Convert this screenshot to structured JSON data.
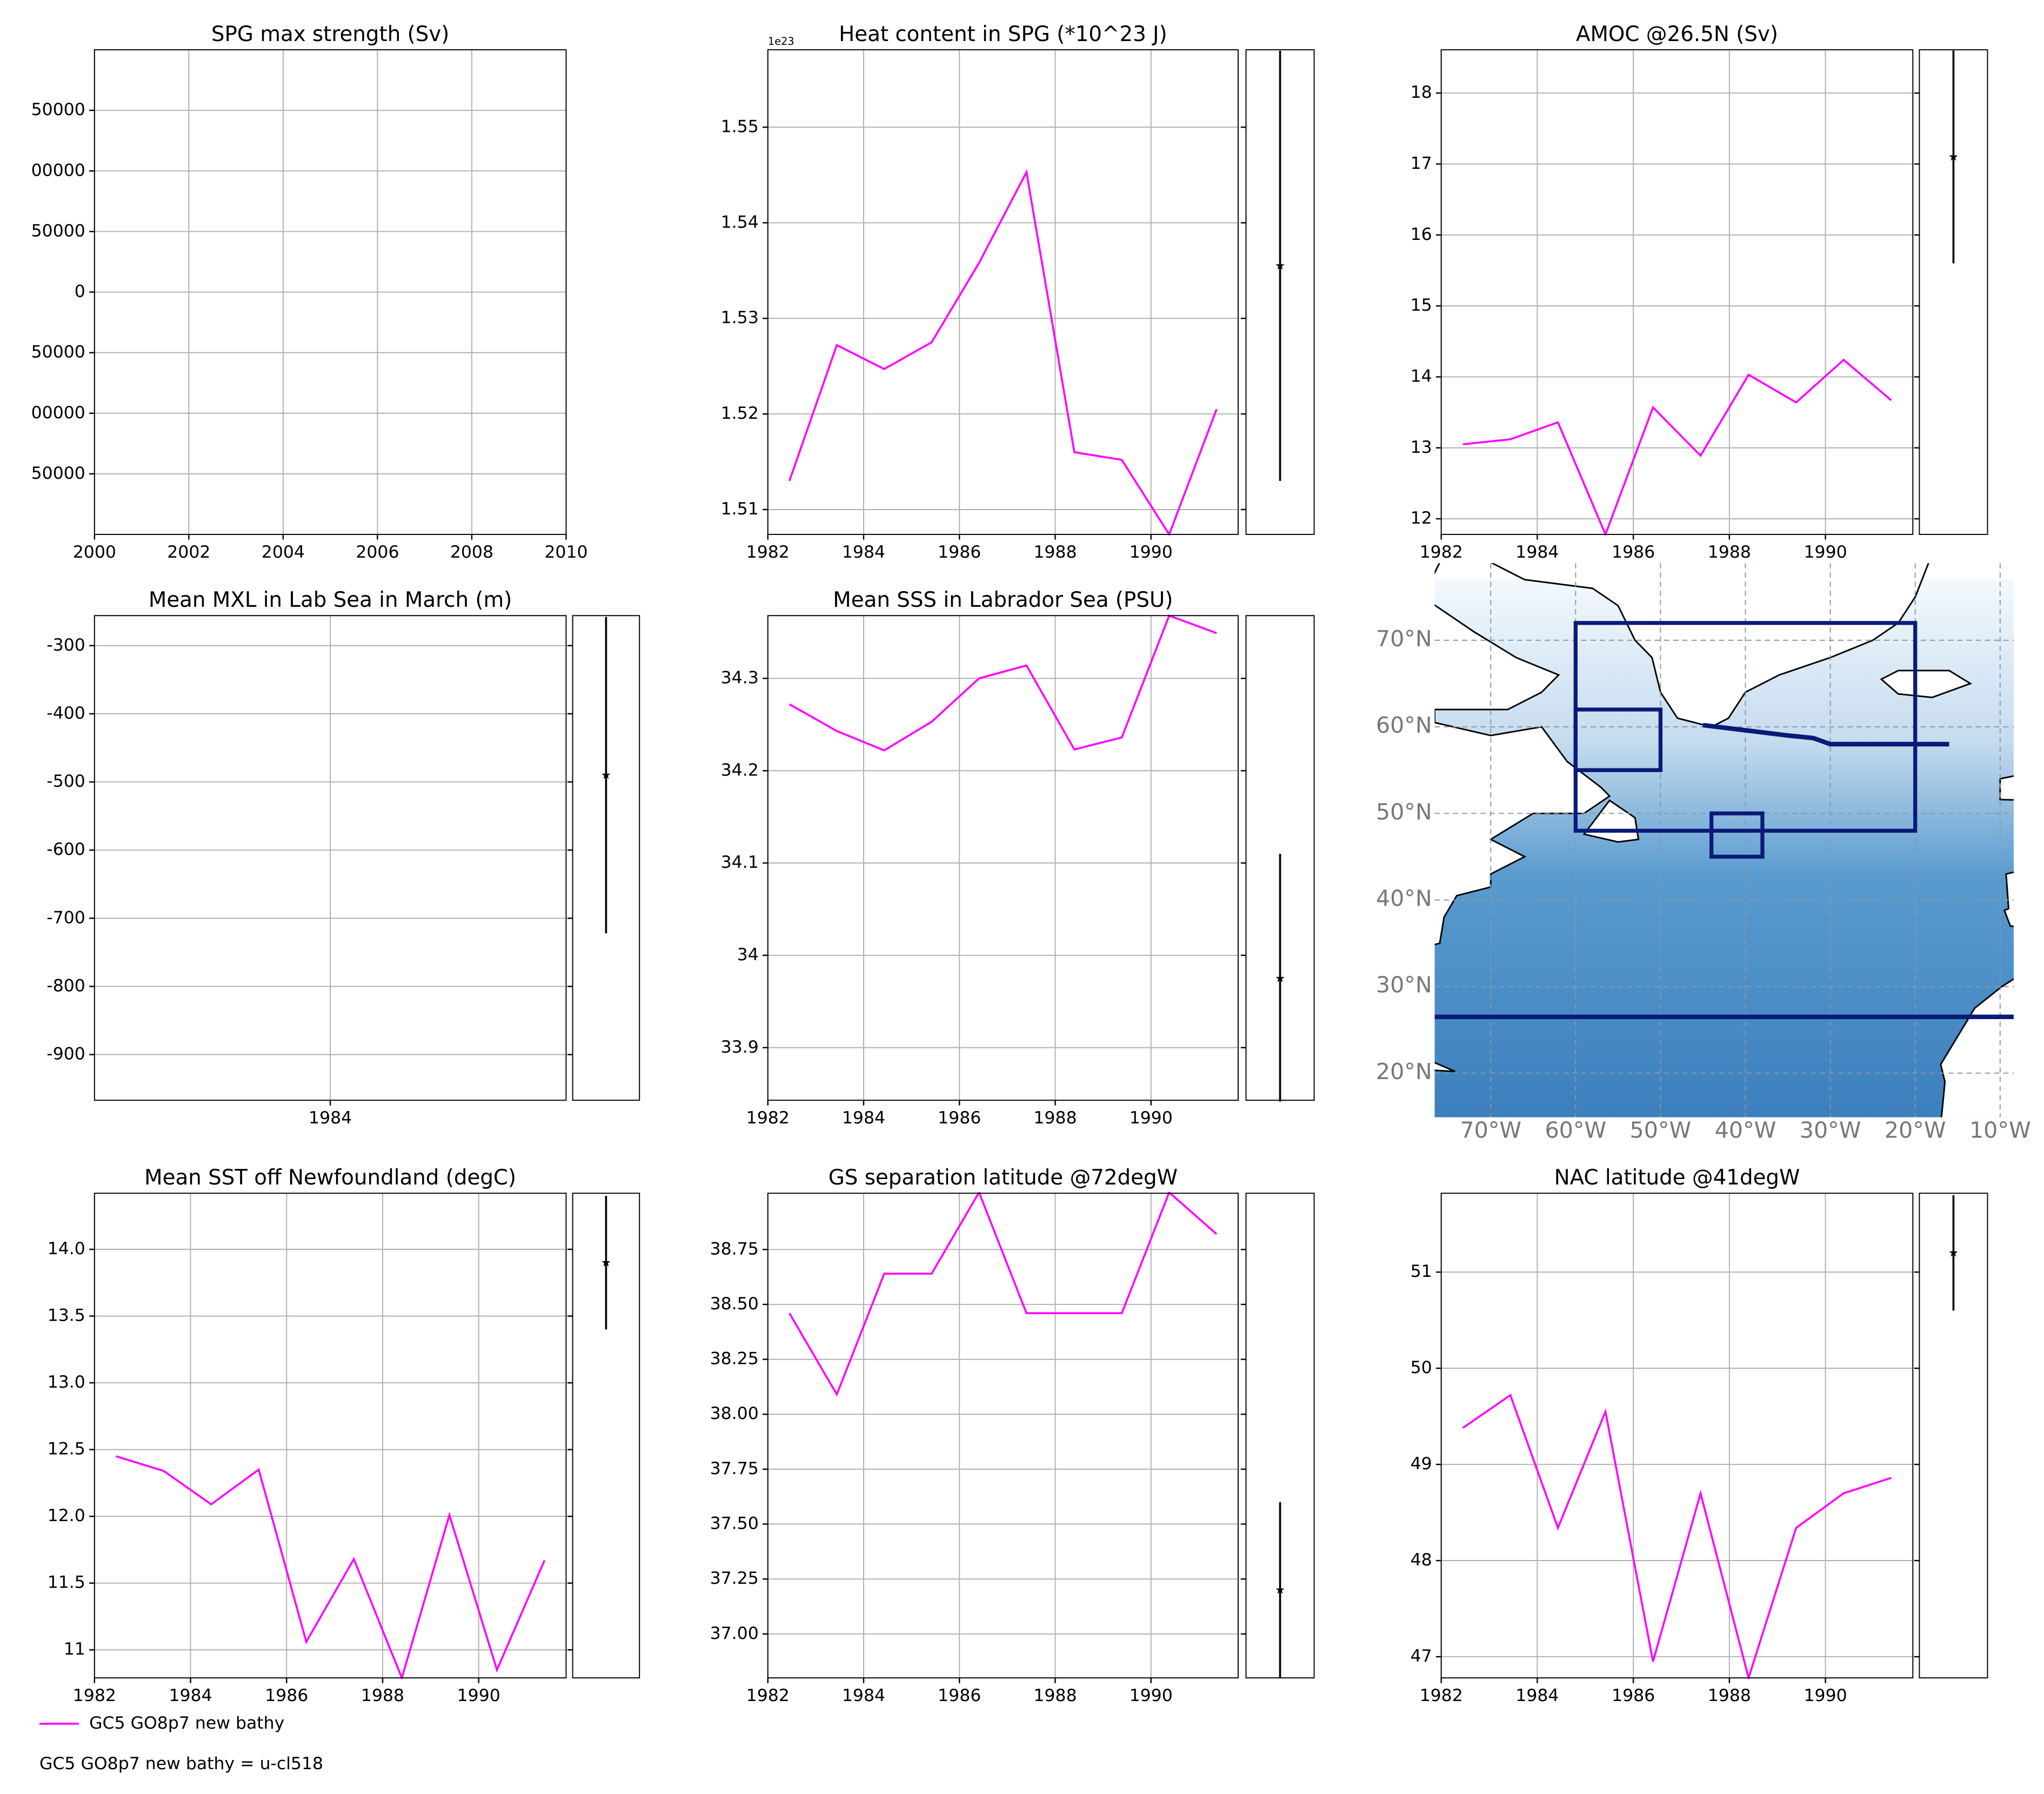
{
  "chart_data": [
    {
      "type": "line",
      "title": "SPG max strength (Sv)",
      "xlim": [
        2000,
        2010
      ],
      "xticks": [
        2000,
        2002,
        2004,
        2006,
        2008,
        2010
      ],
      "ylim": [
        -200000,
        200000
      ],
      "yticks": [
        {
          "value": 150000,
          "label": "50000"
        },
        {
          "value": 100000,
          "label": "00000"
        },
        {
          "value": 50000,
          "label": "50000"
        },
        0,
        {
          "value": -50000,
          "label": "50000"
        },
        {
          "value": -100000,
          "label": "00000"
        },
        {
          "value": -150000,
          "label": "50000"
        }
      ],
      "grid": true
    },
    {
      "type": "line",
      "title": "Heat content in SPG (*10^23 J)",
      "offset_text": "1e23",
      "x": [
        1982.45,
        1983.44,
        1984.43,
        1985.42,
        1986.41,
        1987.4,
        1988.4,
        1989.39,
        1990.38,
        1991.37
      ],
      "series": [
        {
          "name": "GC5 GO8p7 new bathy",
          "color": "#ff00ff",
          "values": [
            1.513,
            1.5272,
            1.5247,
            1.5275,
            1.5358,
            1.5453,
            1.516,
            1.5152,
            1.5074,
            1.5205
          ]
        }
      ],
      "xlim": [
        1982,
        1991.82
      ],
      "xticks": [
        1982,
        1984,
        1986,
        1988,
        1990
      ],
      "ylim": [
        1.5074,
        1.5581
      ],
      "yticks": [
        1.51,
        1.52,
        1.53,
        1.54,
        1.55
      ],
      "grid": true,
      "reference": {
        "value": 1.5355,
        "error": 0.0225
      }
    },
    {
      "type": "line",
      "title": "AMOC @26.5N (Sv)",
      "x": [
        1982.45,
        1983.44,
        1984.43,
        1985.42,
        1986.41,
        1987.4,
        1988.4,
        1989.39,
        1990.38,
        1991.37
      ],
      "series": [
        {
          "name": "GC5 GO8p7 new bathy",
          "color": "#ff00ff",
          "values": [
            13.05,
            13.12,
            13.36,
            11.78,
            13.57,
            12.89,
            14.03,
            13.64,
            14.24,
            13.67
          ]
        }
      ],
      "xlim": [
        1982,
        1991.82
      ],
      "xticks": [
        1982,
        1984,
        1986,
        1988,
        1990
      ],
      "ylim": [
        11.78,
        18.61
      ],
      "yticks": [
        12,
        13,
        14,
        15,
        16,
        17,
        18
      ],
      "grid": true,
      "reference": {
        "value": 17.1,
        "error": 1.5
      }
    },
    {
      "type": "line",
      "title": "Mean MXL in Lab Sea in March (m)",
      "xlim": [
        1983,
        1985
      ],
      "xticks": [
        1984
      ],
      "ylim": [
        -967,
        -256
      ],
      "yticks": [
        -300,
        -400,
        -500,
        -600,
        -700,
        -800,
        -900
      ],
      "grid": true,
      "reference": {
        "value": -490,
        "error": 232
      }
    },
    {
      "type": "line",
      "title": "Mean SSS in Labrador Sea (PSU)",
      "x": [
        1982.45,
        1983.44,
        1984.43,
        1985.42,
        1986.41,
        1987.4,
        1988.4,
        1989.39,
        1990.38,
        1991.37
      ],
      "series": [
        {
          "name": "GC5 GO8p7 new bathy",
          "color": "#ff00ff",
          "values": [
            34.272,
            34.243,
            34.222,
            34.253,
            34.3,
            34.314,
            34.223,
            34.236,
            34.368,
            34.349
          ]
        }
      ],
      "xlim": [
        1982,
        1991.82
      ],
      "xticks": [
        1982,
        1984,
        1986,
        1988,
        1990
      ],
      "ylim": [
        33.843,
        34.368
      ],
      "yticks": [
        33.9,
        34.0,
        34.1,
        34.2,
        34.3
      ],
      "grid": true,
      "reference": {
        "value": 33.975,
        "error": 0.135
      }
    },
    {
      "type": "map",
      "xlim": [
        -76.6,
        -8.4
      ],
      "ylim": [
        14.9,
        78.9
      ],
      "xticks": [
        {
          "value": -70,
          "label": "70°W"
        },
        {
          "value": -60,
          "label": "60°W"
        },
        {
          "value": -50,
          "label": "50°W"
        },
        {
          "value": -40,
          "label": "40°W"
        },
        {
          "value": -30,
          "label": "30°W"
        },
        {
          "value": -20,
          "label": "20°W"
        },
        {
          "value": -10,
          "label": "10°W"
        }
      ],
      "yticks": [
        {
          "value": 20,
          "label": "20°N"
        },
        {
          "value": 30,
          "label": "30°N"
        },
        {
          "value": 40,
          "label": "40°N"
        },
        {
          "value": 50,
          "label": "50°N"
        },
        {
          "value": 60,
          "label": "60°N"
        },
        {
          "value": 70,
          "label": "70°N"
        }
      ],
      "grid": true,
      "color": "#0a1a78",
      "regions": [
        [
          -60,
          -20,
          48,
          72
        ],
        [
          -60,
          -50,
          55,
          62
        ],
        [
          -44,
          -38,
          45,
          50
        ]
      ],
      "section_lat": 26.5,
      "section": {
        "lon": [
          -45,
          -40,
          -35,
          -32,
          -30,
          -25,
          -16
        ],
        "lat": [
          60.2,
          59.6,
          59,
          58.7,
          58,
          58,
          58
        ]
      }
    },
    {
      "type": "line",
      "title": "Mean SST off Newfoundland (degC)",
      "x": [
        1982.45,
        1983.44,
        1984.43,
        1985.42,
        1986.41,
        1987.4,
        1988.4,
        1989.39,
        1990.38,
        1991.37
      ],
      "series": [
        {
          "name": "GC5 GO8p7 new bathy",
          "color": "#ff00ff",
          "values": [
            12.45,
            12.34,
            12.09,
            12.35,
            11.06,
            11.68,
            10.79,
            12.01,
            10.85,
            11.67
          ]
        }
      ],
      "xlim": [
        1982,
        1991.82
      ],
      "xticks": [
        1982,
        1984,
        1986,
        1988,
        1990
      ],
      "ylim": [
        10.79,
        14.42
      ],
      "yticks": [
        11,
        {
          "value": 11.5,
          "label": "11.5"
        },
        {
          "value": 12,
          "label": "12.0"
        },
        12.5,
        {
          "value": 13,
          "label": "13.0"
        },
        13.5,
        {
          "value": 14,
          "label": "14.0"
        }
      ],
      "grid": true,
      "reference": {
        "value": 13.9,
        "error": 0.5
      }
    },
    {
      "type": "line",
      "title": "GS separation latitude @72degW",
      "x": [
        1982.45,
        1983.44,
        1984.43,
        1985.42,
        1986.41,
        1987.4,
        1988.4,
        1989.39,
        1990.38,
        1991.37
      ],
      "series": [
        {
          "name": "GC5 GO8p7 new bathy",
          "color": "#ff00ff",
          "values": [
            38.46,
            38.09,
            38.64,
            38.64,
            39.01,
            38.46,
            38.46,
            38.46,
            39.01,
            38.82
          ]
        }
      ],
      "xlim": [
        1982,
        1991.82
      ],
      "xticks": [
        1982,
        1984,
        1986,
        1988,
        1990
      ],
      "ylim": [
        36.8,
        39.006
      ],
      "yticks": [
        {
          "value": 37,
          "label": "37.00"
        },
        37.25,
        {
          "value": 37.5,
          "label": "37.50"
        },
        37.75,
        {
          "value": 38,
          "label": "38.00"
        },
        38.25,
        {
          "value": 38.5,
          "label": "38.50"
        },
        38.75
      ],
      "grid": true,
      "reference": {
        "value": 37.2,
        "error": 0.4
      }
    },
    {
      "type": "line",
      "title": "NAC latitude @41degW",
      "x": [
        1982.45,
        1983.44,
        1984.43,
        1985.42,
        1986.41,
        1987.4,
        1988.4,
        1989.39,
        1990.38,
        1991.37
      ],
      "series": [
        {
          "name": "GC5 GO8p7 new bathy",
          "color": "#ff00ff",
          "values": [
            49.38,
            49.72,
            48.34,
            49.55,
            46.95,
            48.7,
            46.78,
            48.34,
            48.7,
            48.86
          ]
        }
      ],
      "xlim": [
        1982,
        1991.82
      ],
      "xticks": [
        1982,
        1984,
        1986,
        1988,
        1990
      ],
      "ylim": [
        46.78,
        51.82
      ],
      "yticks": [
        47,
        48,
        49,
        50,
        51
      ],
      "grid": true,
      "reference": {
        "value": 51.2,
        "error": 0.6
      }
    }
  ],
  "note": "GC5 GO8p7 new bathy = u-cl518"
}
